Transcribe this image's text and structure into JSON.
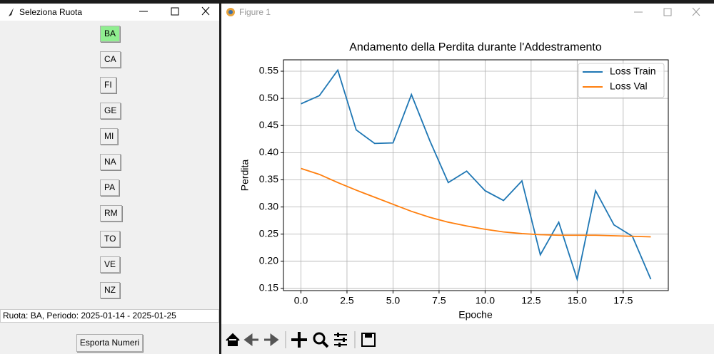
{
  "tk_window": {
    "title": "Seleziona Ruota",
    "buttons": [
      "BA",
      "CA",
      "FI",
      "GE",
      "MI",
      "NA",
      "PA",
      "RM",
      "TO",
      "VE",
      "NZ"
    ],
    "status": "Ruota: BA, Periodo: 2025-01-14 - 2025-01-25",
    "export_button": "Esporta Numeri"
  },
  "figure_window": {
    "title": "Figure 1"
  },
  "chart_data": {
    "type": "line",
    "title": "Andamento della Perdita durante l'Addestramento",
    "x_label": "Epoche",
    "y_label": "Perdita",
    "x": [
      0,
      1,
      2,
      3,
      4,
      5,
      6,
      7,
      8,
      9,
      10,
      11,
      12,
      13,
      14,
      15,
      16,
      17,
      18,
      19
    ],
    "series": [
      {
        "name": "Loss Train",
        "color": "#1f77b4",
        "values": [
          0.49,
          0.505,
          0.552,
          0.442,
          0.417,
          0.418,
          0.507,
          0.422,
          0.345,
          0.366,
          0.33,
          0.312,
          0.348,
          0.212,
          0.272,
          0.167,
          0.33,
          0.267,
          0.246,
          0.167
        ]
      },
      {
        "name": "Loss Val",
        "color": "#ff7f0e",
        "values": [
          0.371,
          0.36,
          0.345,
          0.331,
          0.318,
          0.305,
          0.292,
          0.281,
          0.272,
          0.265,
          0.259,
          0.254,
          0.251,
          0.249,
          0.248,
          0.248,
          0.248,
          0.247,
          0.246,
          0.245
        ]
      }
    ],
    "xlim": [
      -0.95,
      19.95
    ],
    "xticks": [
      {
        "value": 0,
        "label": "0.0"
      },
      2.5,
      {
        "value": 5,
        "label": "5.0"
      },
      7.5,
      {
        "value": 10,
        "label": "10.0"
      },
      12.5,
      {
        "value": 15,
        "label": "15.0"
      },
      17.5
    ],
    "ylim": [
      0.146,
      0.571
    ],
    "yticks": [
      0.15,
      {
        "value": 0.2,
        "label": "0.20"
      },
      0.25,
      {
        "value": 0.3,
        "label": "0.30"
      },
      0.35,
      {
        "value": 0.4,
        "label": "0.40"
      },
      0.45,
      {
        "value": 0.5,
        "label": "0.50"
      },
      0.55
    ],
    "grid": true,
    "legend": "upper-right"
  }
}
